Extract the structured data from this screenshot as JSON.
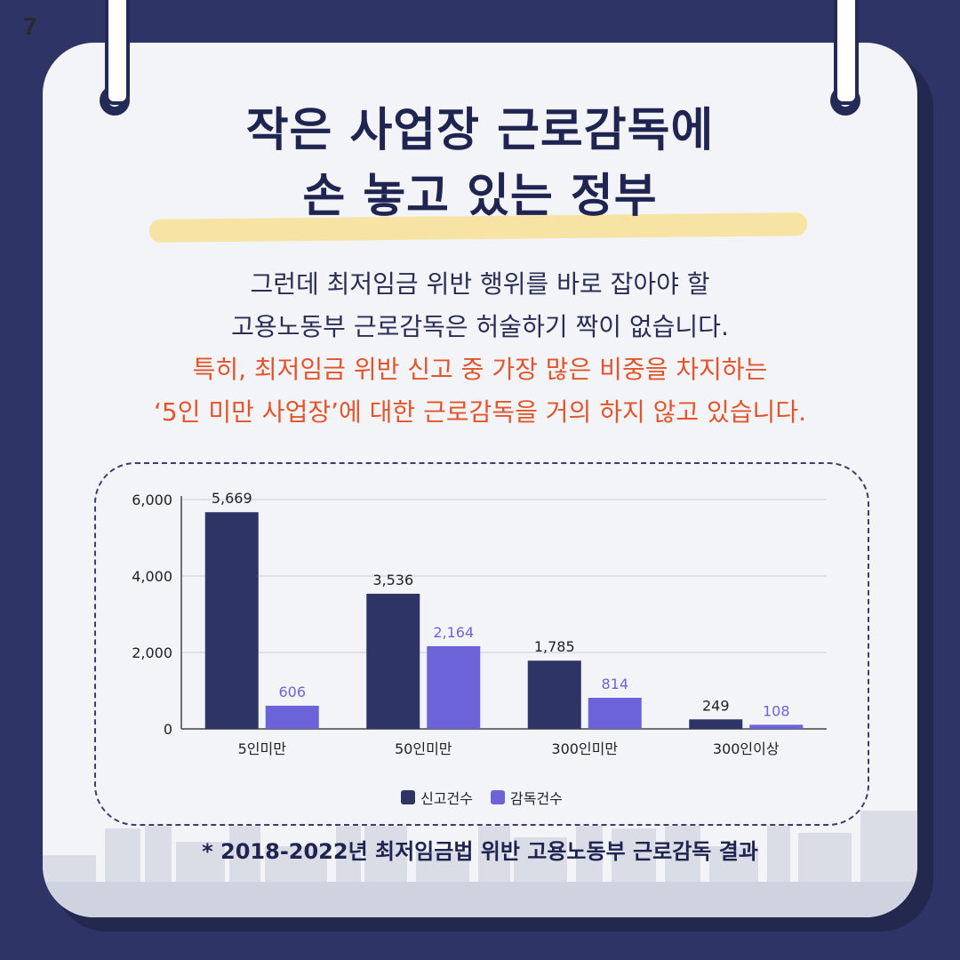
{
  "page_number": "7",
  "title_lines": [
    "작은 사업장 근로감독에",
    "손 놓고 있는 정부"
  ],
  "subtitle_lines": [
    {
      "text": "그런데 최저임금 위반 행위를 바로 잡아야 할",
      "style": "dark"
    },
    {
      "text": "고용노동부 근로감독은 허술하기 짝이 없습니다.",
      "style": "dark"
    },
    {
      "text": "특히, 최저임금 위반 신고 중 가장 많은 비중을 차지하는",
      "style": "red"
    },
    {
      "text": "‘5인 미만 사업장’에 대한 근로감독을 거의 하지 않고 있습니다.",
      "style": "red"
    }
  ],
  "colors": {
    "background": "#2e3466",
    "title": "#1f2550",
    "highlight": "#f7e3a3",
    "red_text": "#e2542c",
    "series_report": "#2e3466",
    "series_inspection": "#6c63d9"
  },
  "chart_data": {
    "type": "bar",
    "categories": [
      "5인미만",
      "50인미만",
      "300인미만",
      "300인이상"
    ],
    "series": [
      {
        "name": "신고건수",
        "values": [
          5669,
          3536,
          1785,
          249
        ],
        "labels": [
          "5,669",
          "3,536",
          "1,785",
          "249"
        ],
        "color": "#2e3466"
      },
      {
        "name": "감독건수",
        "values": [
          606,
          2164,
          814,
          108
        ],
        "labels": [
          "606",
          "2,164",
          "814",
          "108"
        ],
        "color": "#6c63d9"
      }
    ],
    "ylim": [
      0,
      6000
    ],
    "yticks": [
      0,
      2000,
      4000,
      6000
    ],
    "ytick_labels": [
      "0",
      "2,000",
      "4,000",
      "6,000"
    ],
    "grid": true,
    "legend_position": "bottom"
  },
  "footnote": "* 2018-2022년 최저임금법 위반 고용노동부 근로감독 결과"
}
